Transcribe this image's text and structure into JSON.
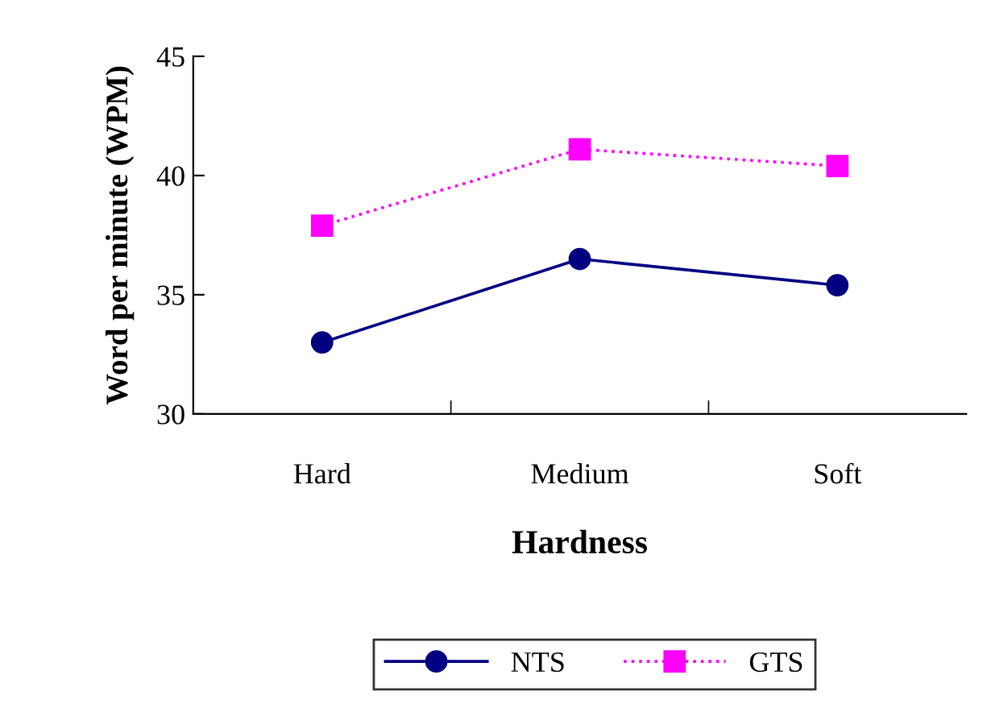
{
  "chart_data": {
    "type": "line",
    "xlabel": "Hardness",
    "ylabel": "Word per minute (WPM)",
    "categories": [
      "Hard",
      "Medium",
      "Soft"
    ],
    "series": [
      {
        "name": "NTS",
        "color": "#000080",
        "values": [
          33.0,
          36.5,
          35.4
        ],
        "marker": "circle",
        "line_style": "solid"
      },
      {
        "name": "GTS",
        "color": "#ff00ff",
        "values": [
          37.9,
          41.1,
          40.4
        ],
        "marker": "square",
        "line_style": "dotted"
      }
    ],
    "ylim": [
      30,
      45
    ],
    "yticks": [
      30,
      35,
      40,
      45
    ],
    "grid": false,
    "legend": "bottom"
  }
}
